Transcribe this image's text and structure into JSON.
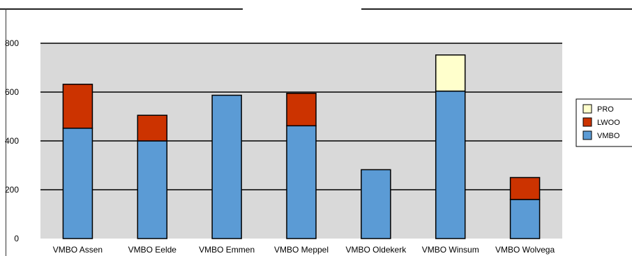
{
  "chart_data": {
    "type": "bar",
    "stacked": true,
    "title": "",
    "xlabel": "",
    "ylabel": "",
    "ylim": [
      0,
      800
    ],
    "yticks": [
      0,
      200,
      400,
      600,
      800
    ],
    "grid": true,
    "legend_position": "right",
    "categories": [
      "VMBO Assen",
      "VMBO Eelde",
      "VMBO Emmen",
      "VMBO Meppel",
      "VMBO Oldekerk",
      "VMBO Winsum",
      "VMBO Wolvega"
    ],
    "series": [
      {
        "name": "VMBO",
        "color": "#5b9bd5",
        "values": [
          452,
          400,
          587,
          462,
          282,
          604,
          160
        ]
      },
      {
        "name": "LWOO",
        "color": "#cc3300",
        "values": [
          180,
          105,
          0,
          133,
          0,
          0,
          90
        ]
      },
      {
        "name": "PRO",
        "color": "#ffffcc",
        "values": [
          0,
          0,
          0,
          0,
          0,
          148,
          0
        ]
      }
    ]
  }
}
